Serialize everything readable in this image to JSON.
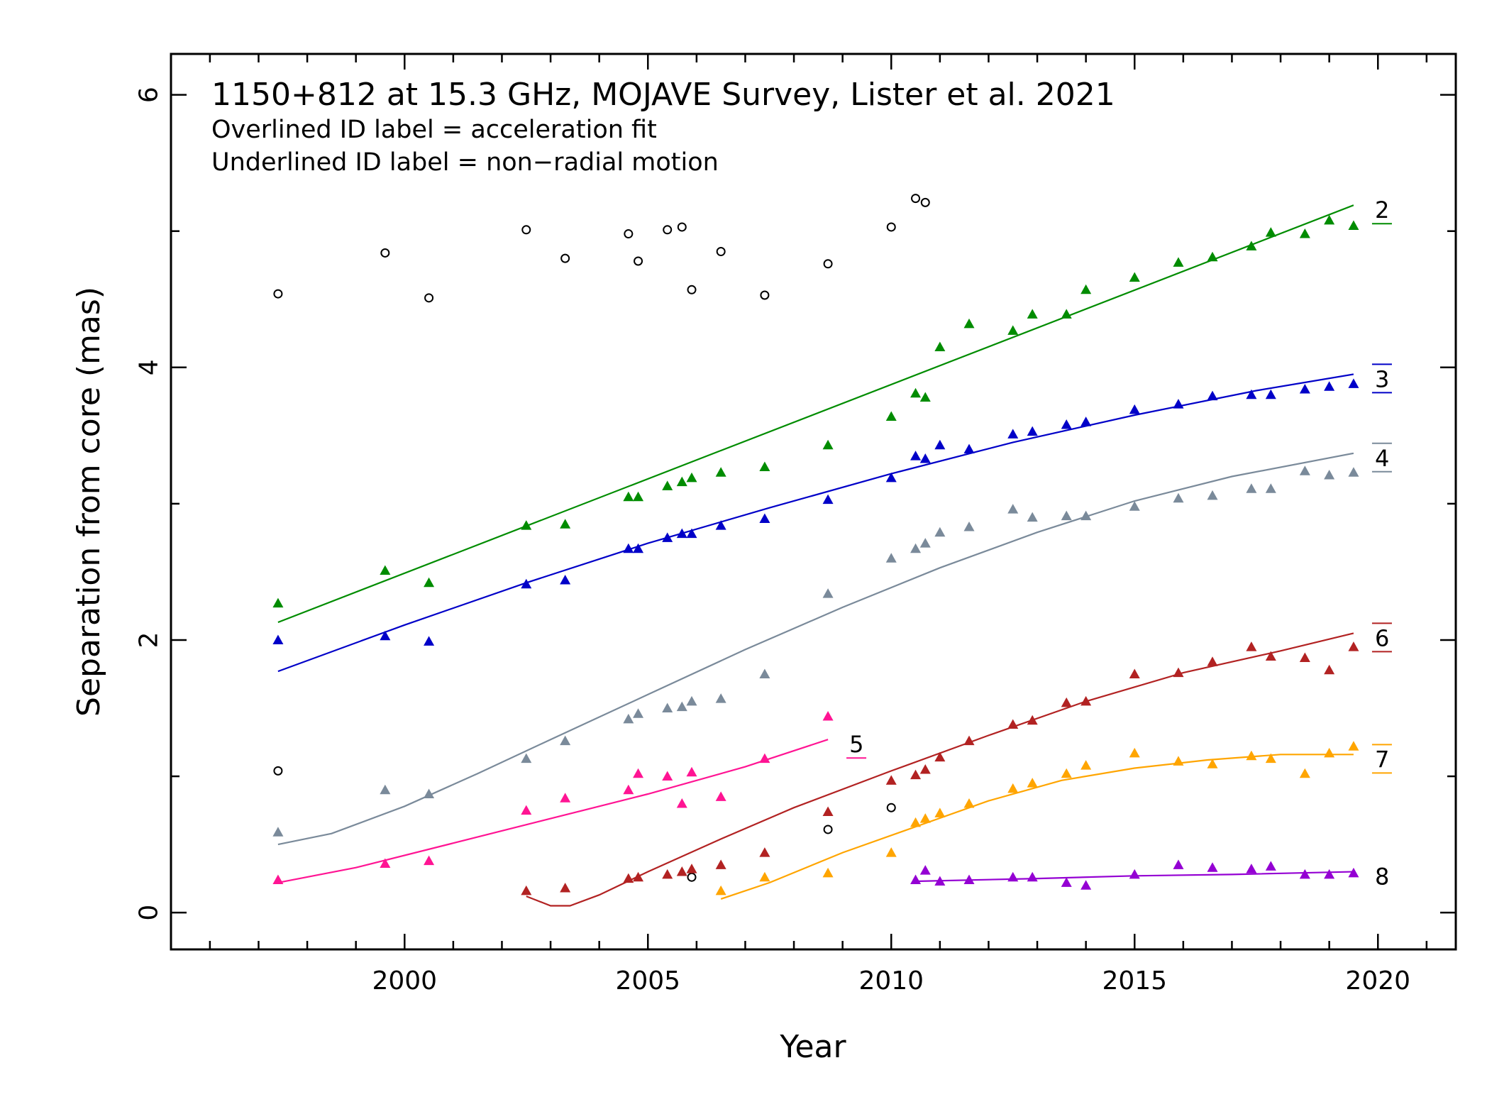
{
  "chart_data": {
    "type": "scatter",
    "title": "1150+812 at 15.3 GHz, MOJAVE Survey, Lister et al. 2021",
    "annotations": [
      "Overlined ID label = acceleration fit",
      "Underlined ID label = non−radial motion"
    ],
    "xlabel": "Year",
    "ylabel": "Separation from core (mas)",
    "xlim": [
      1995.2,
      2021.6
    ],
    "ylim": [
      -0.27,
      6.3
    ],
    "xticks": [
      2000,
      2005,
      2010,
      2015,
      2020
    ],
    "yticks": [
      0,
      2,
      4,
      6
    ],
    "grid": false,
    "legend": "labels at right end of each fit line",
    "unassociated_points": {
      "marker": "open-circle",
      "color": "#000000",
      "points": [
        [
          1997.4,
          4.54
        ],
        [
          1999.6,
          4.84
        ],
        [
          2000.5,
          4.51
        ],
        [
          2002.5,
          5.01
        ],
        [
          2003.3,
          4.8
        ],
        [
          2004.6,
          4.98
        ],
        [
          2004.8,
          4.78
        ],
        [
          2005.4,
          5.01
        ],
        [
          2005.7,
          5.03
        ],
        [
          2005.9,
          4.57
        ],
        [
          2006.5,
          4.85
        ],
        [
          2007.4,
          4.53
        ],
        [
          2008.7,
          4.76
        ],
        [
          2010.0,
          5.03
        ],
        [
          2010.5,
          5.24
        ],
        [
          2010.7,
          5.21
        ],
        [
          1997.4,
          1.04
        ],
        [
          2010.0,
          0.77
        ],
        [
          2008.7,
          0.61
        ],
        [
          2005.9,
          0.26
        ]
      ]
    },
    "series": [
      {
        "name": "2",
        "color": "#008c00",
        "label_style": "underline",
        "points": [
          [
            1997.4,
            2.27
          ],
          [
            1999.6,
            2.51
          ],
          [
            2000.5,
            2.42
          ],
          [
            2002.5,
            2.84
          ],
          [
            2003.3,
            2.85
          ],
          [
            2004.6,
            3.05
          ],
          [
            2004.8,
            3.05
          ],
          [
            2005.4,
            3.13
          ],
          [
            2005.7,
            3.16
          ],
          [
            2005.9,
            3.19
          ],
          [
            2006.5,
            3.23
          ],
          [
            2007.4,
            3.27
          ],
          [
            2008.7,
            3.43
          ],
          [
            2010.0,
            3.64
          ],
          [
            2010.5,
            3.81
          ],
          [
            2010.7,
            3.78
          ],
          [
            2011.0,
            4.15
          ],
          [
            2011.6,
            4.32
          ],
          [
            2012.5,
            4.27
          ],
          [
            2012.9,
            4.39
          ],
          [
            2013.6,
            4.39
          ],
          [
            2014.0,
            4.57
          ],
          [
            2015.0,
            4.66
          ],
          [
            2015.9,
            4.77
          ],
          [
            2016.6,
            4.81
          ],
          [
            2017.4,
            4.89
          ],
          [
            2017.8,
            4.99
          ],
          [
            2018.5,
            4.98
          ],
          [
            2019.0,
            5.08
          ],
          [
            2019.5,
            5.04
          ]
        ],
        "fit": [
          [
            1997.4,
            2.13
          ],
          [
            2019.5,
            5.19
          ]
        ]
      },
      {
        "name": "3",
        "color": "#0000c8",
        "label_style": "overline-underline",
        "points": [
          [
            1997.4,
            2.0
          ],
          [
            1999.6,
            2.03
          ],
          [
            2000.5,
            1.99
          ],
          [
            2002.5,
            2.41
          ],
          [
            2003.3,
            2.44
          ],
          [
            2004.6,
            2.67
          ],
          [
            2004.8,
            2.67
          ],
          [
            2005.4,
            2.75
          ],
          [
            2005.7,
            2.78
          ],
          [
            2005.9,
            2.78
          ],
          [
            2006.5,
            2.84
          ],
          [
            2007.4,
            2.89
          ],
          [
            2008.7,
            3.03
          ],
          [
            2010.0,
            3.19
          ],
          [
            2010.5,
            3.35
          ],
          [
            2010.7,
            3.33
          ],
          [
            2011.0,
            3.43
          ],
          [
            2011.6,
            3.4
          ],
          [
            2012.5,
            3.51
          ],
          [
            2012.9,
            3.53
          ],
          [
            2013.6,
            3.58
          ],
          [
            2014.0,
            3.6
          ],
          [
            2015.0,
            3.69
          ],
          [
            2015.9,
            3.73
          ],
          [
            2016.6,
            3.79
          ],
          [
            2017.4,
            3.8
          ],
          [
            2017.8,
            3.8
          ],
          [
            2018.5,
            3.84
          ],
          [
            2019.0,
            3.86
          ],
          [
            2019.5,
            3.88
          ]
        ],
        "fit": [
          [
            1997.4,
            1.77
          ],
          [
            2000.0,
            2.11
          ],
          [
            2002.5,
            2.42
          ],
          [
            2005.0,
            2.71
          ],
          [
            2007.5,
            2.97
          ],
          [
            2010.0,
            3.22
          ],
          [
            2012.5,
            3.45
          ],
          [
            2015.0,
            3.65
          ],
          [
            2017.5,
            3.83
          ],
          [
            2019.5,
            3.95
          ]
        ]
      },
      {
        "name": "4",
        "color": "#7a8a9a",
        "label_style": "overline-underline",
        "points": [
          [
            1997.4,
            0.59
          ],
          [
            1999.6,
            0.9
          ],
          [
            2000.5,
            0.87
          ],
          [
            2002.5,
            1.13
          ],
          [
            2003.3,
            1.26
          ],
          [
            2004.6,
            1.42
          ],
          [
            2004.8,
            1.46
          ],
          [
            2005.4,
            1.5
          ],
          [
            2005.7,
            1.51
          ],
          [
            2005.9,
            1.55
          ],
          [
            2006.5,
            1.57
          ],
          [
            2007.4,
            1.75
          ],
          [
            2008.7,
            2.34
          ],
          [
            2010.0,
            2.6
          ],
          [
            2010.5,
            2.67
          ],
          [
            2010.7,
            2.71
          ],
          [
            2011.0,
            2.79
          ],
          [
            2011.6,
            2.83
          ],
          [
            2012.5,
            2.96
          ],
          [
            2012.9,
            2.9
          ],
          [
            2013.6,
            2.91
          ],
          [
            2014.0,
            2.91
          ],
          [
            2015.0,
            2.98
          ],
          [
            2015.9,
            3.04
          ],
          [
            2016.6,
            3.06
          ],
          [
            2017.4,
            3.11
          ],
          [
            2017.8,
            3.11
          ],
          [
            2018.5,
            3.24
          ],
          [
            2019.0,
            3.21
          ],
          [
            2019.5,
            3.23
          ]
        ],
        "fit": [
          [
            1997.4,
            0.5
          ],
          [
            1998.5,
            0.58
          ],
          [
            2000.0,
            0.78
          ],
          [
            2001.5,
            1.02
          ],
          [
            2003.0,
            1.27
          ],
          [
            2005.0,
            1.6
          ],
          [
            2007.0,
            1.93
          ],
          [
            2009.0,
            2.24
          ],
          [
            2011.0,
            2.53
          ],
          [
            2013.0,
            2.79
          ],
          [
            2015.0,
            3.02
          ],
          [
            2017.0,
            3.2
          ],
          [
            2019.5,
            3.37
          ]
        ]
      },
      {
        "name": "5",
        "color": "#ff1493",
        "label_style": "underline",
        "points": [
          [
            1997.4,
            0.24
          ],
          [
            1999.6,
            0.36
          ],
          [
            2000.5,
            0.38
          ],
          [
            2002.5,
            0.75
          ],
          [
            2003.3,
            0.84
          ],
          [
            2004.6,
            0.9
          ],
          [
            2004.8,
            1.02
          ],
          [
            2005.4,
            1.0
          ],
          [
            2005.7,
            0.8
          ],
          [
            2005.9,
            1.03
          ],
          [
            2006.5,
            0.85
          ],
          [
            2007.4,
            1.13
          ],
          [
            2008.7,
            1.44
          ]
        ],
        "fit": [
          [
            1997.4,
            0.22
          ],
          [
            1999.0,
            0.33
          ],
          [
            2001.0,
            0.51
          ],
          [
            2003.0,
            0.69
          ],
          [
            2005.0,
            0.87
          ],
          [
            2007.0,
            1.07
          ],
          [
            2008.7,
            1.27
          ]
        ]
      },
      {
        "name": "6",
        "color": "#b22222",
        "label_style": "overline-underline",
        "points": [
          [
            2002.5,
            0.16
          ],
          [
            2003.3,
            0.18
          ],
          [
            2004.6,
            0.25
          ],
          [
            2004.8,
            0.26
          ],
          [
            2005.4,
            0.28
          ],
          [
            2005.7,
            0.3
          ],
          [
            2005.9,
            0.32
          ],
          [
            2006.5,
            0.35
          ],
          [
            2007.4,
            0.44
          ],
          [
            2008.7,
            0.74
          ],
          [
            2010.0,
            0.97
          ],
          [
            2010.5,
            1.01
          ],
          [
            2010.7,
            1.05
          ],
          [
            2011.0,
            1.14
          ],
          [
            2011.6,
            1.26
          ],
          [
            2012.5,
            1.38
          ],
          [
            2012.9,
            1.41
          ],
          [
            2013.6,
            1.54
          ],
          [
            2014.0,
            1.55
          ],
          [
            2015.0,
            1.75
          ],
          [
            2015.9,
            1.76
          ],
          [
            2016.6,
            1.84
          ],
          [
            2017.4,
            1.95
          ],
          [
            2017.8,
            1.88
          ],
          [
            2018.5,
            1.87
          ],
          [
            2019.0,
            1.78
          ],
          [
            2019.5,
            1.95
          ]
        ],
        "fit": [
          [
            2002.5,
            0.12
          ],
          [
            2003.0,
            0.05
          ],
          [
            2003.4,
            0.05
          ],
          [
            2004.0,
            0.13
          ],
          [
            2005.0,
            0.3
          ],
          [
            2006.5,
            0.54
          ],
          [
            2008.0,
            0.77
          ],
          [
            2010.0,
            1.04
          ],
          [
            2012.0,
            1.3
          ],
          [
            2014.0,
            1.55
          ],
          [
            2016.0,
            1.76
          ],
          [
            2018.0,
            1.92
          ],
          [
            2019.5,
            2.05
          ]
        ]
      },
      {
        "name": "7",
        "color": "#ffa500",
        "label_style": "overline-underline",
        "points": [
          [
            2006.5,
            0.16
          ],
          [
            2007.4,
            0.26
          ],
          [
            2008.7,
            0.29
          ],
          [
            2010.0,
            0.44
          ],
          [
            2010.5,
            0.66
          ],
          [
            2010.7,
            0.69
          ],
          [
            2011.0,
            0.73
          ],
          [
            2011.6,
            0.8
          ],
          [
            2012.5,
            0.91
          ],
          [
            2012.9,
            0.95
          ],
          [
            2013.6,
            1.02
          ],
          [
            2014.0,
            1.08
          ],
          [
            2015.0,
            1.17
          ],
          [
            2015.9,
            1.11
          ],
          [
            2016.6,
            1.09
          ],
          [
            2017.4,
            1.15
          ],
          [
            2017.8,
            1.13
          ],
          [
            2018.5,
            1.02
          ],
          [
            2019.0,
            1.17
          ],
          [
            2019.5,
            1.22
          ]
        ],
        "fit": [
          [
            2006.5,
            0.1
          ],
          [
            2007.5,
            0.22
          ],
          [
            2009.0,
            0.44
          ],
          [
            2010.5,
            0.63
          ],
          [
            2012.0,
            0.82
          ],
          [
            2013.5,
            0.97
          ],
          [
            2015.0,
            1.06
          ],
          [
            2016.5,
            1.12
          ],
          [
            2018.0,
            1.16
          ],
          [
            2019.5,
            1.16
          ]
        ]
      },
      {
        "name": "8",
        "color": "#9400d3",
        "label_style": "plain",
        "points": [
          [
            2010.5,
            0.24
          ],
          [
            2010.7,
            0.31
          ],
          [
            2011.0,
            0.23
          ],
          [
            2011.6,
            0.24
          ],
          [
            2012.5,
            0.26
          ],
          [
            2012.9,
            0.26
          ],
          [
            2013.6,
            0.22
          ],
          [
            2014.0,
            0.2
          ],
          [
            2015.0,
            0.28
          ],
          [
            2015.9,
            0.35
          ],
          [
            2016.6,
            0.33
          ],
          [
            2017.4,
            0.32
          ],
          [
            2017.8,
            0.34
          ],
          [
            2018.5,
            0.28
          ],
          [
            2019.0,
            0.28
          ],
          [
            2019.5,
            0.29
          ]
        ],
        "fit": [
          [
            2010.5,
            0.23
          ],
          [
            2013.0,
            0.25
          ],
          [
            2015.0,
            0.27
          ],
          [
            2017.0,
            0.28
          ],
          [
            2019.5,
            0.3
          ]
        ]
      }
    ]
  }
}
